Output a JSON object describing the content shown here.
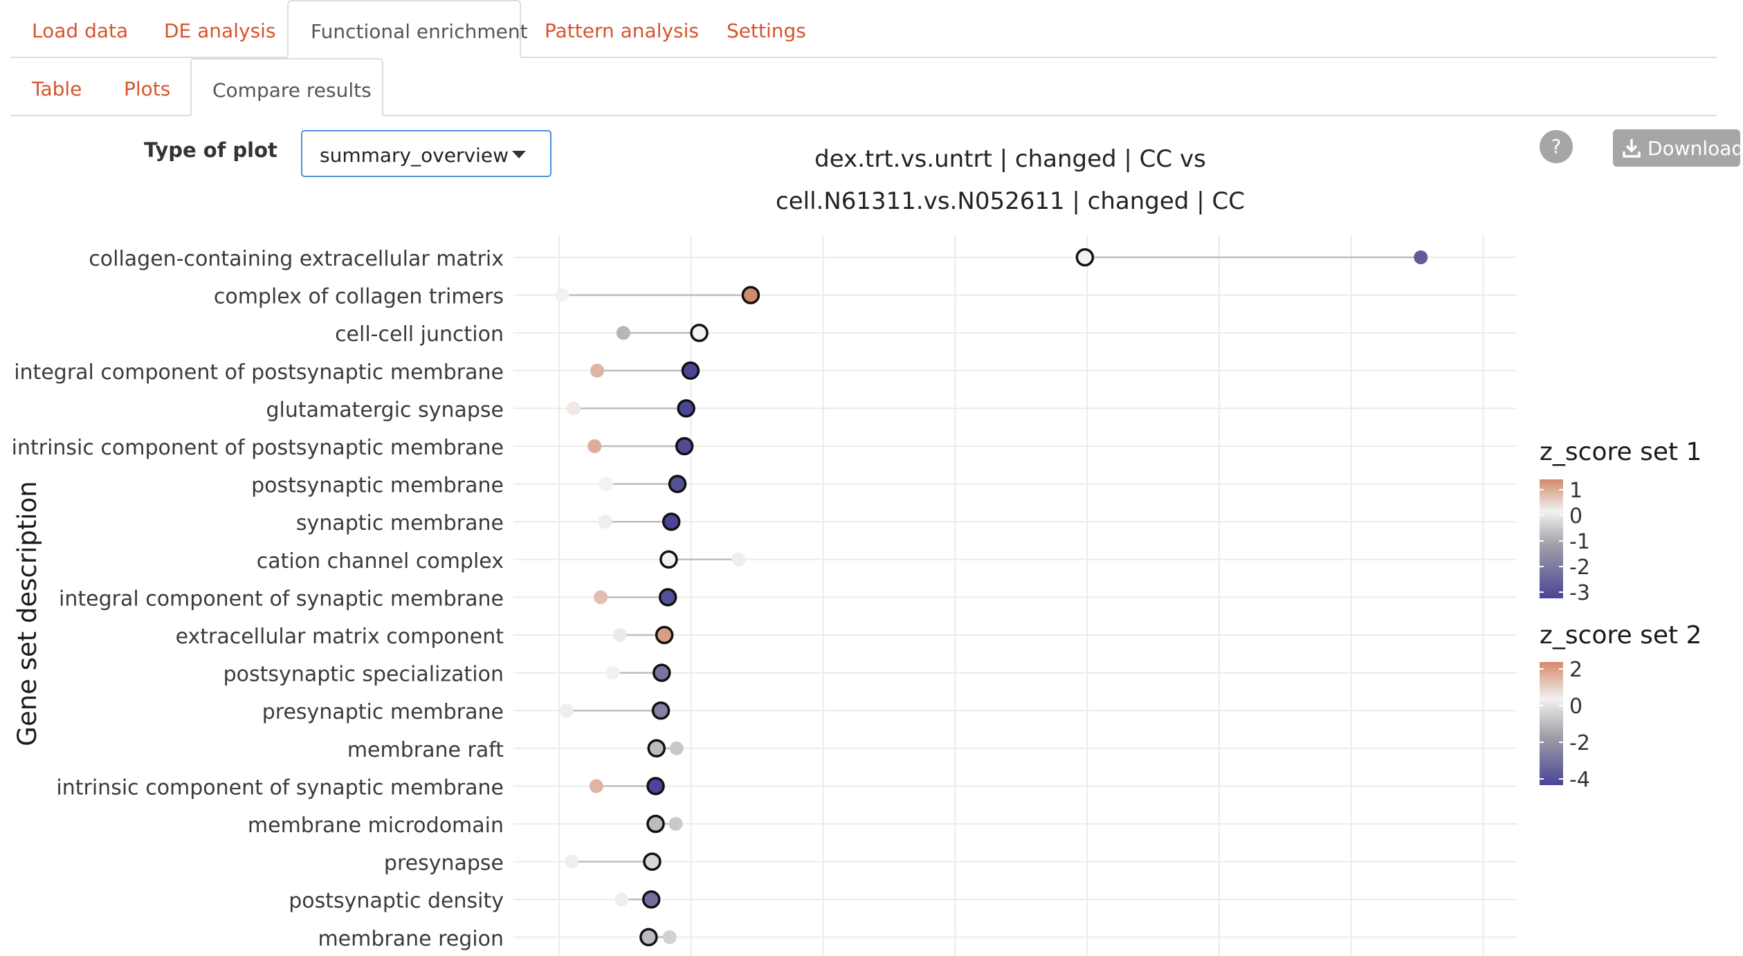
{
  "main_tabs": [
    {
      "label": "Load data"
    },
    {
      "label": "DE analysis"
    },
    {
      "label": "Functional enrichment"
    },
    {
      "label": "Pattern analysis"
    },
    {
      "label": "Settings"
    }
  ],
  "sub_tabs": [
    {
      "label": "Table"
    },
    {
      "label": "Plots"
    },
    {
      "label": "Compare results"
    }
  ],
  "controls": {
    "plot_type_label": "Type of plot",
    "plot_type_value": "summary_overview",
    "help_label": "?",
    "download_label": "Download"
  },
  "colors": {
    "tab_link": "#d5552b",
    "button_gray": "#a6a6a6",
    "low": "#4a4596",
    "mid": "#f2f2f2",
    "high": "#d28a6c"
  },
  "chart_data": {
    "type": "dumbbell",
    "title_line1": "dex.trt.vs.untrt | changed | CC vs",
    "title_line2": "cell.N61311.vs.N052611 | changed | CC",
    "ylabel": "Gene set description",
    "xlabel": "",
    "grid": true,
    "legend_position": "right",
    "categories": [
      "collagen-containing extracellular matrix",
      "complex of collagen trimers",
      "cell-cell junction",
      "integral component of postsynaptic membrane",
      "glutamatergic synapse",
      "intrinsic component of postsynaptic membrane",
      "postsynaptic membrane",
      "synaptic membrane",
      "cation channel complex",
      "integral component of synaptic membrane",
      "extracellular matrix component",
      "postsynaptic specialization",
      "presynaptic membrane",
      "membrane raft",
      "intrinsic component of synaptic membrane",
      "membrane microdomain",
      "presynapse",
      "postsynaptic density",
      "membrane region"
    ],
    "series": [
      {
        "name": "z_score set 1",
        "x": [
          6.25,
          2.42,
          1.83,
          1.73,
          1.68,
          1.66,
          1.58,
          1.51,
          1.48,
          1.47,
          1.43,
          1.4,
          1.39,
          1.34,
          1.33,
          1.33,
          1.29,
          1.28,
          1.25
        ],
        "z": [
          0.0,
          1.0,
          0.0,
          -3.0,
          -3.2,
          -2.9,
          -2.8,
          -3.0,
          0.0,
          -2.8,
          0.8,
          -2.2,
          -2.0,
          -1.0,
          -3.3,
          -1.0,
          -0.5,
          -2.3,
          -1.0
        ]
      },
      {
        "name": "z_score set 2",
        "x": [
          10.1,
          0.26,
          0.96,
          0.66,
          0.39,
          0.63,
          0.76,
          0.75,
          2.28,
          0.7,
          0.92,
          0.84,
          0.31,
          1.57,
          0.65,
          1.56,
          0.37,
          0.94,
          1.49
        ],
        "z": [
          -3.5,
          0.0,
          -1.5,
          1.2,
          0.2,
          1.3,
          0.0,
          0.1,
          0.1,
          1.0,
          -0.2,
          0.0,
          -0.1,
          -1.0,
          1.2,
          -1.0,
          0.1,
          -0.1,
          -0.8
        ]
      }
    ],
    "xlim": [
      -0.3,
      11.2
    ],
    "legend1": {
      "title": "z_score set 1",
      "ticks": [
        "1",
        "0",
        "-1",
        "-2",
        "-3"
      ]
    },
    "legend2": {
      "title": "z_score set 2",
      "ticks": [
        "2",
        "0",
        "-2",
        "-4"
      ]
    }
  }
}
